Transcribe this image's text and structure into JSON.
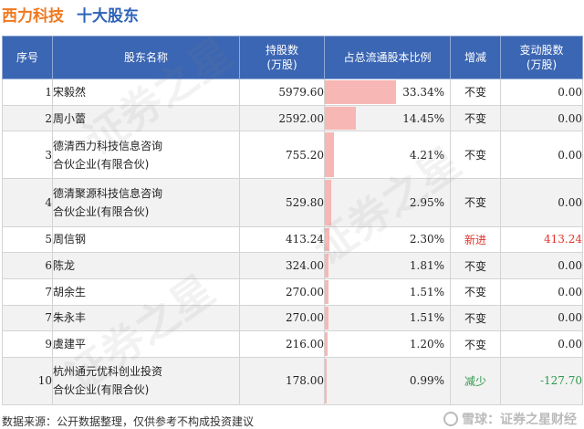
{
  "title": {
    "company": "西力科技",
    "subtitle": "十大股东"
  },
  "table": {
    "headers": {
      "rank": "序号",
      "name": "股东名称",
      "amount_line1": "持股数",
      "amount_line2": "(万股)",
      "ratio": "占总流通股本比例",
      "change": "增减",
      "change_amount_line1": "变动股数",
      "change_amount_line2": "(万股)"
    },
    "rows": [
      {
        "rank": "1",
        "name_lines": [
          "宋毅然"
        ],
        "amount": "5979.60",
        "ratio": "33.34%",
        "ratio_value": 33.34,
        "change": "不变",
        "change_amount": "0.00",
        "change_type": "same"
      },
      {
        "rank": "2",
        "name_lines": [
          "周小蕾"
        ],
        "amount": "2592.00",
        "ratio": "14.45%",
        "ratio_value": 14.45,
        "change": "不变",
        "change_amount": "0.00",
        "change_type": "same"
      },
      {
        "rank": "3",
        "name_lines": [
          "德清西力科技信息咨询",
          "合伙企业(有限合伙)"
        ],
        "amount": "755.20",
        "ratio": "4.21%",
        "ratio_value": 4.21,
        "change": "不变",
        "change_amount": "0.00",
        "change_type": "same"
      },
      {
        "rank": "4",
        "name_lines": [
          "德清聚源科技信息咨询",
          "合伙企业(有限合伙)"
        ],
        "amount": "529.80",
        "ratio": "2.95%",
        "ratio_value": 2.95,
        "change": "不变",
        "change_amount": "0.00",
        "change_type": "same"
      },
      {
        "rank": "5",
        "name_lines": [
          "周信钢"
        ],
        "amount": "413.24",
        "ratio": "2.30%",
        "ratio_value": 2.3,
        "change": "新进",
        "change_amount": "413.24",
        "change_type": "new"
      },
      {
        "rank": "6",
        "name_lines": [
          "陈龙"
        ],
        "amount": "324.00",
        "ratio": "1.81%",
        "ratio_value": 1.81,
        "change": "不变",
        "change_amount": "0.00",
        "change_type": "same"
      },
      {
        "rank": "7",
        "name_lines": [
          "胡余生"
        ],
        "amount": "270.00",
        "ratio": "1.51%",
        "ratio_value": 1.51,
        "change": "不变",
        "change_amount": "0.00",
        "change_type": "same"
      },
      {
        "rank": "7",
        "name_lines": [
          "朱永丰"
        ],
        "amount": "270.00",
        "ratio": "1.51%",
        "ratio_value": 1.51,
        "change": "不变",
        "change_amount": "0.00",
        "change_type": "same"
      },
      {
        "rank": "9",
        "name_lines": [
          "虞建平"
        ],
        "amount": "216.00",
        "ratio": "1.20%",
        "ratio_value": 1.2,
        "change": "不变",
        "change_amount": "0.00",
        "change_type": "same"
      },
      {
        "rank": "10",
        "name_lines": [
          "杭州通元优科创业投资",
          "合伙企业(有限合伙)"
        ],
        "amount": "178.00",
        "ratio": "0.99%",
        "ratio_value": 0.99,
        "change": "减少",
        "change_amount": "-127.70",
        "change_type": "down"
      }
    ],
    "ratio_bar_max": 33.34
  },
  "footer": {
    "source": "数据来源：公开数据整理，仅供参考不构成投资建议",
    "brand": "雪球：证券之星财经"
  },
  "watermark": "证券之星",
  "colors": {
    "orange": "#f07820",
    "blue": "#2f63b8",
    "header_bg": "#3b66b3",
    "bar": "#f7b7b5",
    "up": "#e0342d",
    "down": "#2e9a4a"
  }
}
